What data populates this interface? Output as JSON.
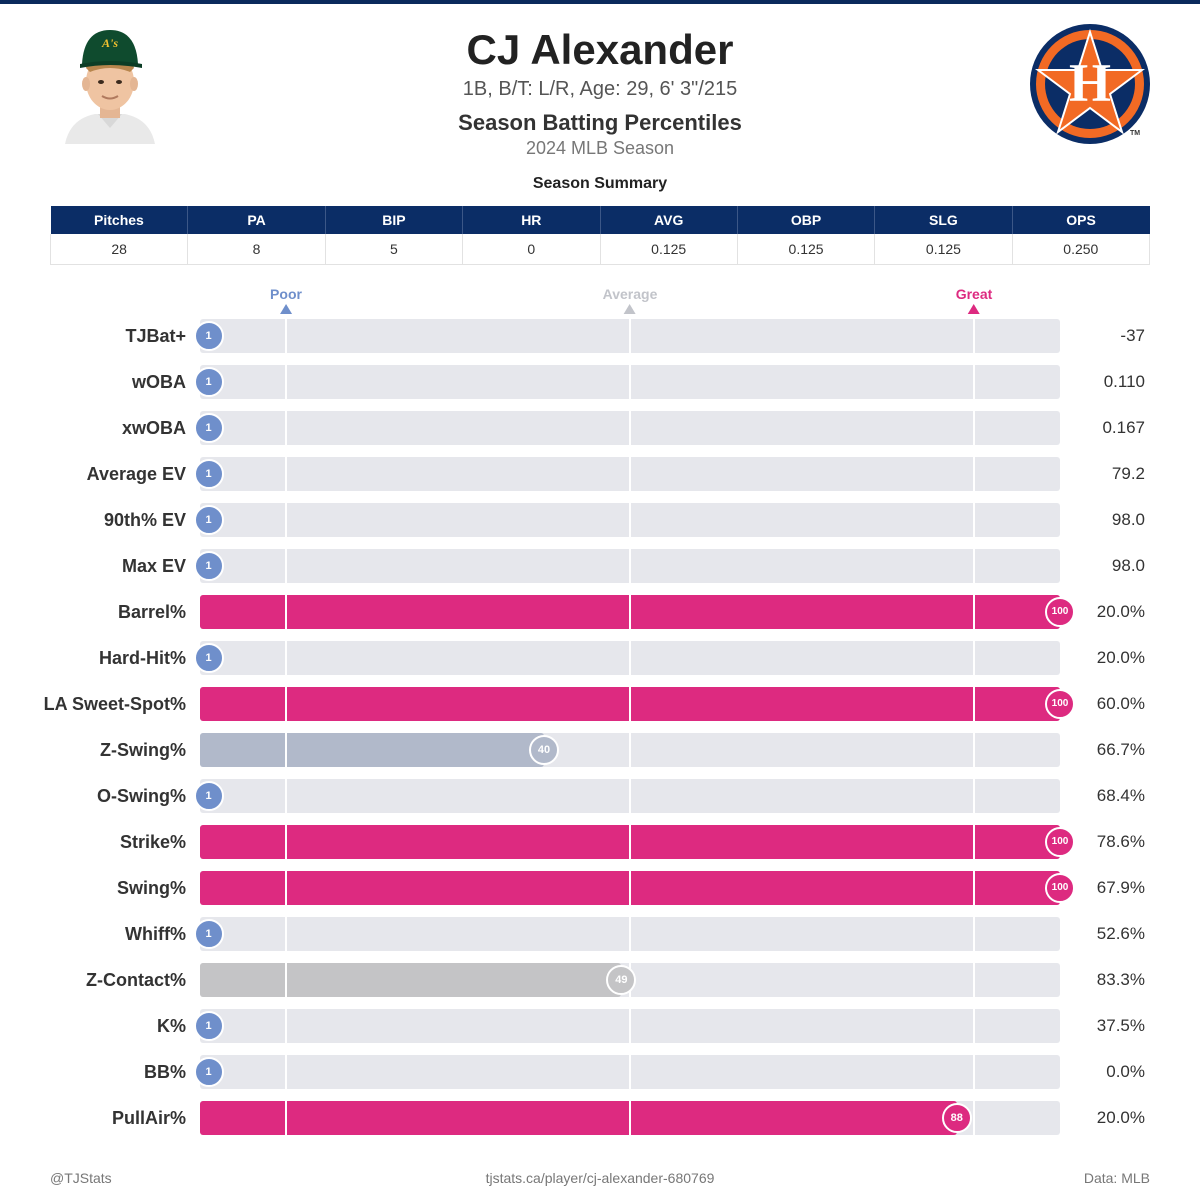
{
  "header": {
    "name": "CJ Alexander",
    "subtitle": "1B, B/T: L/R, Age: 29, 6' 3\"/215",
    "title": "Season Batting Percentiles",
    "season": "2024 MLB Season",
    "cap_letters": "A's",
    "logo_letter": "H",
    "logo_tm": "TM"
  },
  "summary": {
    "title": "Season Summary",
    "headers": [
      "Pitches",
      "PA",
      "BIP",
      "HR",
      "AVG",
      "OBP",
      "SLG",
      "OPS"
    ],
    "values": [
      "28",
      "8",
      "5",
      "0",
      "0.125",
      "0.125",
      "0.125",
      "0.250"
    ]
  },
  "colors": {
    "header_navy": "#0b2d66",
    "poor": "#6f8fcb",
    "average": "#b6b8bf",
    "great": "#dd2a80",
    "track": "#e6e7ec"
  },
  "chart_data": {
    "type": "bar",
    "orientation": "horizontal",
    "xlim": [
      0,
      100
    ],
    "legend": [
      {
        "label": "Poor",
        "at": 10,
        "color": "#6f8fcb"
      },
      {
        "label": "Average",
        "at": 50,
        "color": "#c2c4ca"
      },
      {
        "label": "Great",
        "at": 90,
        "color": "#dd2a80"
      }
    ],
    "rows": [
      {
        "label": "TJBat+",
        "percentile": 1,
        "value": "-37"
      },
      {
        "label": "wOBA",
        "percentile": 1,
        "value": "0.110"
      },
      {
        "label": "xwOBA",
        "percentile": 1,
        "value": "0.167"
      },
      {
        "label": "Average EV",
        "percentile": 1,
        "value": "79.2"
      },
      {
        "label": "90th% EV",
        "percentile": 1,
        "value": "98.0"
      },
      {
        "label": "Max EV",
        "percentile": 1,
        "value": "98.0"
      },
      {
        "label": "Barrel%",
        "percentile": 100,
        "value": "20.0%"
      },
      {
        "label": "Hard-Hit%",
        "percentile": 1,
        "value": "20.0%"
      },
      {
        "label": "LA Sweet-Spot%",
        "percentile": 100,
        "value": "60.0%"
      },
      {
        "label": "Z-Swing%",
        "percentile": 40,
        "value": "66.7%"
      },
      {
        "label": "O-Swing%",
        "percentile": 1,
        "value": "68.4%"
      },
      {
        "label": "Strike%",
        "percentile": 100,
        "value": "78.6%"
      },
      {
        "label": "Swing%",
        "percentile": 100,
        "value": "67.9%"
      },
      {
        "label": "Whiff%",
        "percentile": 1,
        "value": "52.6%"
      },
      {
        "label": "Z-Contact%",
        "percentile": 49,
        "value": "83.3%"
      },
      {
        "label": "K%",
        "percentile": 1,
        "value": "37.5%"
      },
      {
        "label": "BB%",
        "percentile": 1,
        "value": "0.0%"
      },
      {
        "label": "PullAir%",
        "percentile": 88,
        "value": "20.0%"
      }
    ]
  },
  "footer": {
    "left": "@TJStats",
    "center": "tjstats.ca/player/cj-alexander-680769",
    "right": "Data: MLB"
  }
}
